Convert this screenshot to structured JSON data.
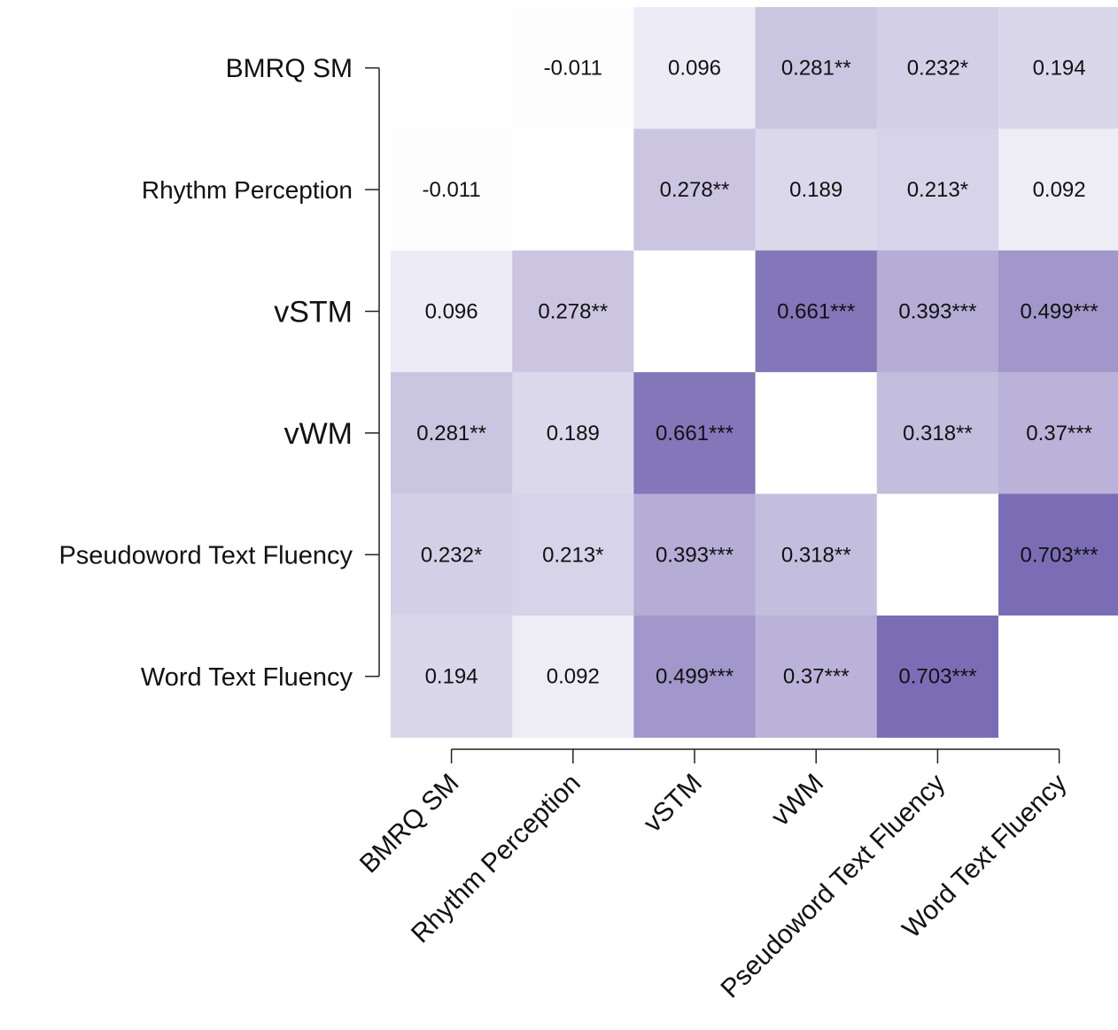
{
  "chart_data": {
    "type": "heatmap",
    "title": "",
    "xlabel": "",
    "ylabel": "",
    "variables": [
      "BMRQ SM",
      "Rhythm Perception",
      "vSTM",
      "vWM",
      "Pseudoword Text Fluency",
      "Word Text Fluency"
    ],
    "values": [
      [
        null,
        -0.011,
        0.096,
        0.281,
        0.232,
        0.194
      ],
      [
        -0.011,
        null,
        0.278,
        0.189,
        0.213,
        0.092
      ],
      [
        0.096,
        0.278,
        null,
        0.661,
        0.393,
        0.499
      ],
      [
        0.281,
        0.189,
        0.661,
        null,
        0.318,
        0.37
      ],
      [
        0.232,
        0.213,
        0.393,
        0.318,
        null,
        0.703
      ],
      [
        0.194,
        0.092,
        0.499,
        0.37,
        0.703,
        null
      ]
    ],
    "labels": [
      [
        "",
        "-0.011",
        "0.096",
        "0.281**",
        "0.232*",
        "0.194"
      ],
      [
        "-0.011",
        "",
        "0.278**",
        "0.189",
        "0.213*",
        "0.092"
      ],
      [
        "0.096",
        "0.278**",
        "",
        "0.661***",
        "0.393***",
        "0.499***"
      ],
      [
        "0.281**",
        "0.189",
        "0.661***",
        "",
        "0.318**",
        "0.37***"
      ],
      [
        "0.232*",
        "0.213*",
        "0.393***",
        "0.318**",
        "",
        "0.703***"
      ],
      [
        "0.194",
        "0.092",
        "0.499***",
        "0.37***",
        "0.703***",
        ""
      ]
    ],
    "color_scale": {
      "low": "#ffffff",
      "high": "#7b6db5",
      "max_value": 0.703
    },
    "grid": false,
    "legend": "none"
  }
}
